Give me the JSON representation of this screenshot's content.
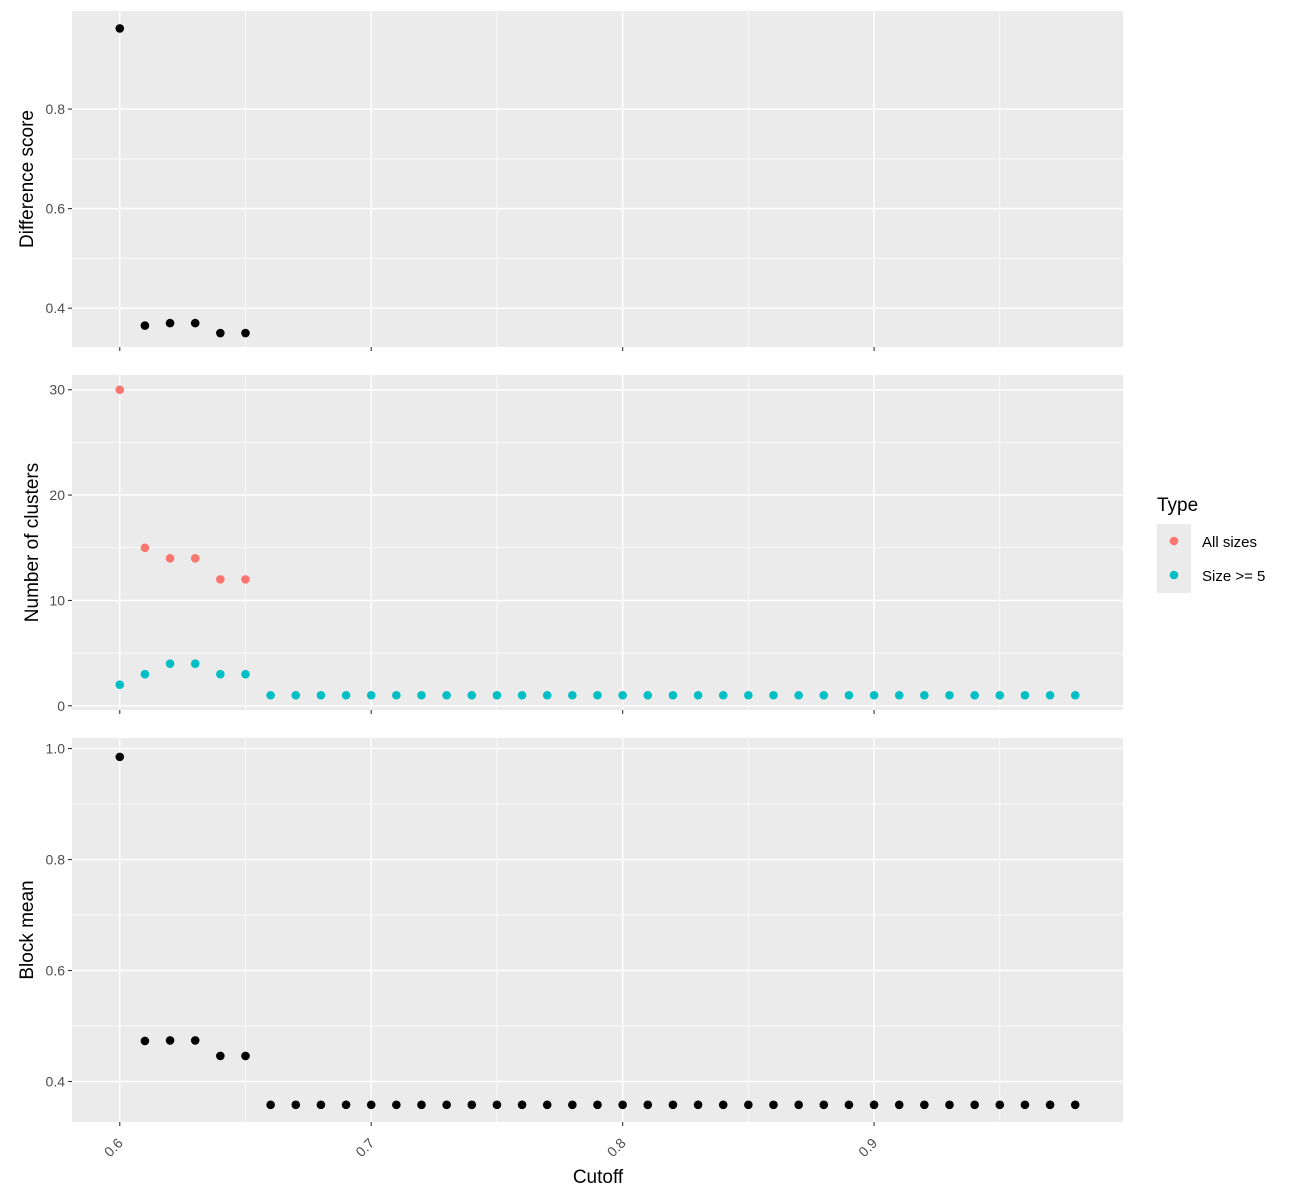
{
  "chart_data": {
    "type": "scatter",
    "layout": "faceted-vertical",
    "xlabel": "Cutoff",
    "x_ticks": [
      0.6,
      0.7,
      0.8,
      0.9
    ],
    "x_tick_labels": [
      "0.6",
      "0.7",
      "0.8",
      "0.9"
    ],
    "xlim": [
      0.581,
      0.999
    ],
    "legend": {
      "title": "Type",
      "placement": "right",
      "entries": [
        {
          "label": "All sizes",
          "color": "#F8766D"
        },
        {
          "label": "Size >= 5",
          "color": "#00BFC4"
        }
      ]
    },
    "panels": [
      {
        "ylabel": "Difference score",
        "ylim": [
          0.322,
          0.997
        ],
        "y_ticks": [
          0.4,
          0.6,
          0.8
        ],
        "y_tick_labels": [
          "0.4",
          "0.6",
          "0.8"
        ],
        "series": [
          {
            "color": "#000000",
            "x": [
              0.6,
              0.61,
              0.62,
              0.63,
              0.64,
              0.65
            ],
            "y": [
              0.962,
              0.365,
              0.37,
              0.37,
              0.35,
              0.35
            ]
          }
        ]
      },
      {
        "ylabel": "Number of clusters",
        "ylim": [
          -0.4,
          31.4
        ],
        "y_ticks": [
          0,
          10,
          20,
          30
        ],
        "y_tick_labels": [
          "0",
          "10",
          "20",
          "30"
        ],
        "series": [
          {
            "name": "All sizes",
            "color": "#F8766D",
            "x": [
              0.6,
              0.61,
              0.62,
              0.63,
              0.64,
              0.65
            ],
            "y": [
              30,
              15,
              14,
              14,
              12,
              12
            ]
          },
          {
            "name": "Size >= 5",
            "color": "#00BFC4",
            "x": [
              0.6,
              0.61,
              0.62,
              0.63,
              0.64,
              0.65,
              0.66,
              0.67,
              0.68,
              0.69,
              0.7,
              0.71,
              0.72,
              0.73,
              0.74,
              0.75,
              0.76,
              0.77,
              0.78,
              0.79,
              0.8,
              0.81,
              0.82,
              0.83,
              0.84,
              0.85,
              0.86,
              0.87,
              0.88,
              0.89,
              0.9,
              0.91,
              0.92,
              0.93,
              0.94,
              0.95,
              0.96,
              0.97,
              0.98
            ],
            "y": [
              2,
              3,
              4,
              4,
              3,
              3,
              1,
              1,
              1,
              1,
              1,
              1,
              1,
              1,
              1,
              1,
              1,
              1,
              1,
              1,
              1,
              1,
              1,
              1,
              1,
              1,
              1,
              1,
              1,
              1,
              1,
              1,
              1,
              1,
              1,
              1,
              1,
              1,
              1
            ]
          }
        ]
      },
      {
        "ylabel": "Block mean",
        "ylim": [
          0.327,
          1.019
        ],
        "y_ticks": [
          0.4,
          0.6,
          0.8,
          1.0
        ],
        "y_tick_labels": [
          "0.4",
          "0.6",
          "0.8",
          "1.0"
        ],
        "series": [
          {
            "color": "#000000",
            "x": [
              0.6,
              0.61,
              0.62,
              0.63,
              0.64,
              0.65,
              0.66,
              0.67,
              0.68,
              0.69,
              0.7,
              0.71,
              0.72,
              0.73,
              0.74,
              0.75,
              0.76,
              0.77,
              0.78,
              0.79,
              0.8,
              0.81,
              0.82,
              0.83,
              0.84,
              0.85,
              0.86,
              0.87,
              0.88,
              0.89,
              0.9,
              0.91,
              0.92,
              0.93,
              0.94,
              0.95,
              0.96,
              0.97,
              0.98
            ],
            "y": [
              0.985,
              0.473,
              0.474,
              0.474,
              0.446,
              0.446,
              0.358,
              0.358,
              0.358,
              0.358,
              0.358,
              0.358,
              0.358,
              0.358,
              0.358,
              0.358,
              0.358,
              0.358,
              0.358,
              0.358,
              0.358,
              0.358,
              0.358,
              0.358,
              0.358,
              0.358,
              0.358,
              0.358,
              0.358,
              0.358,
              0.358,
              0.358,
              0.358,
              0.358,
              0.358,
              0.358,
              0.358,
              0.358,
              0.358
            ]
          }
        ]
      }
    ]
  }
}
